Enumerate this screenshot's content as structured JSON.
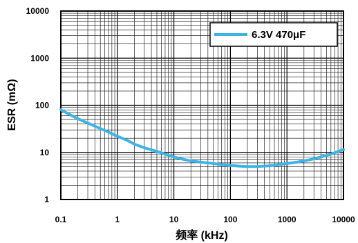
{
  "chart_data": {
    "type": "line",
    "xlabel": "频率 (kHz)",
    "ylabel": "ESR (mΩ)",
    "x_scale": "log",
    "y_scale": "log",
    "xlim": [
      0.1,
      10000
    ],
    "ylim": [
      1,
      10000
    ],
    "x_ticks": [
      "0.1",
      "1",
      "10",
      "100",
      "1000",
      "10000"
    ],
    "y_ticks": [
      "1",
      "10",
      "100",
      "1000",
      "10000"
    ],
    "grid": true,
    "legend_position": "top-right",
    "series": [
      {
        "name": "6.3V 470μF",
        "color": "#3cb4e6",
        "x": [
          0.1,
          0.15,
          0.2,
          0.3,
          0.5,
          0.7,
          1,
          1.5,
          2,
          3,
          5,
          7,
          10,
          15,
          20,
          30,
          50,
          70,
          100,
          150,
          200,
          300,
          500,
          700,
          1000,
          1500,
          2000,
          3000,
          5000,
          7000,
          10000
        ],
        "y": [
          80,
          62,
          52,
          42,
          32,
          27,
          22,
          18,
          15,
          12.5,
          10.5,
          9.2,
          8.0,
          7.1,
          6.6,
          6.2,
          5.8,
          5.5,
          5.3,
          5.1,
          5.0,
          5.0,
          5.2,
          5.5,
          5.8,
          6.2,
          6.6,
          7.3,
          8.6,
          9.8,
          11.5
        ]
      }
    ]
  }
}
